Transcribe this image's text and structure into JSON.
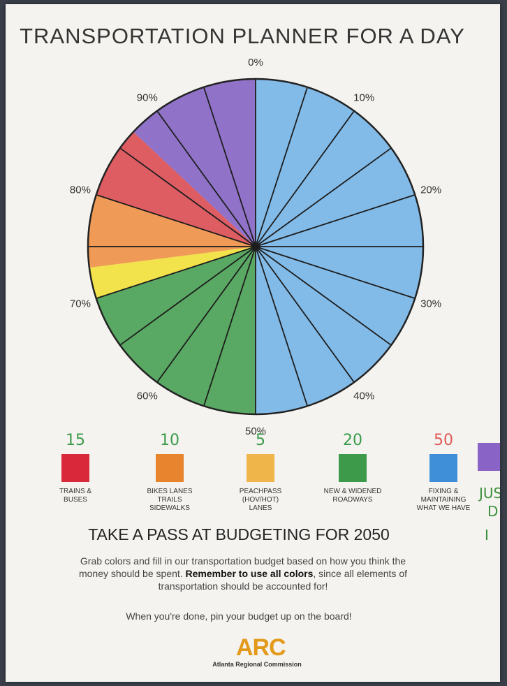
{
  "header": {
    "title": "TRANSPORTATION PLANNER FOR A DAY"
  },
  "chart_data": {
    "type": "pie",
    "title": "TRANSPORTATION PLANNER FOR A DAY",
    "tick_labels": [
      "0%",
      "10%",
      "20%",
      "30%",
      "40%",
      "50%",
      "60%",
      "70%",
      "80%",
      "90%"
    ],
    "slices": [
      {
        "color": "#6fb0e6",
        "start": 0,
        "end": 50
      },
      {
        "color": "#3d9a4a",
        "start": 50,
        "end": 70
      },
      {
        "color": "#f1de2e",
        "start": 70,
        "end": 73
      },
      {
        "color": "#ef8a3c",
        "start": 73,
        "end": 80
      },
      {
        "color": "#d8424a",
        "start": 80,
        "end": 87
      },
      {
        "color": "#7e5cc2",
        "start": 87,
        "end": 100
      }
    ],
    "divider_angles_percent": [
      0,
      5,
      10,
      15,
      20,
      25,
      30,
      35,
      40,
      45,
      50,
      55,
      60,
      65,
      70,
      75,
      80,
      85,
      90,
      95
    ]
  },
  "legend": [
    {
      "note": "15",
      "note_color": "#3a9a4a",
      "color": "#d8283a",
      "label": "TRAINS &\nBUSES"
    },
    {
      "note": "10",
      "note_color": "#3a9a4a",
      "color": "#e8832e",
      "label": "BIKES LANES\nTRAILS\nSIDEWALKS"
    },
    {
      "note": "5",
      "note_color": "#3a9a4a",
      "color": "#f0b54a",
      "label": "PEACHPASS\n(HOV/HOT)\nLANES"
    },
    {
      "note": "20",
      "note_color": "#3a9a4a",
      "color": "#3d9a4a",
      "label": "NEW & WIDENED\nROADWAYS"
    },
    {
      "note": "50",
      "note_color": "#e05a5a",
      "color": "#3f8fd8",
      "label": "FIXING &\nMAINTAINING\nWHAT WE HAVE"
    }
  ],
  "footer": {
    "subtitle": "TAKE A PASS AT BUDGETING FOR 2050",
    "instructions_before": "Grab colors and fill in our transportation budget based on how you think the money should be spent. ",
    "instructions_bold": "Remember to use all colors",
    "instructions_after": ", since all elements of transportation should be accounted for!",
    "pin_note": "When you're done, pin your budget up on the board!",
    "logo": "ARC",
    "org": "Atlanta Regional Commission"
  },
  "handwriting": {
    "line1": "JUS",
    "line2": "D",
    "line3": "I"
  }
}
